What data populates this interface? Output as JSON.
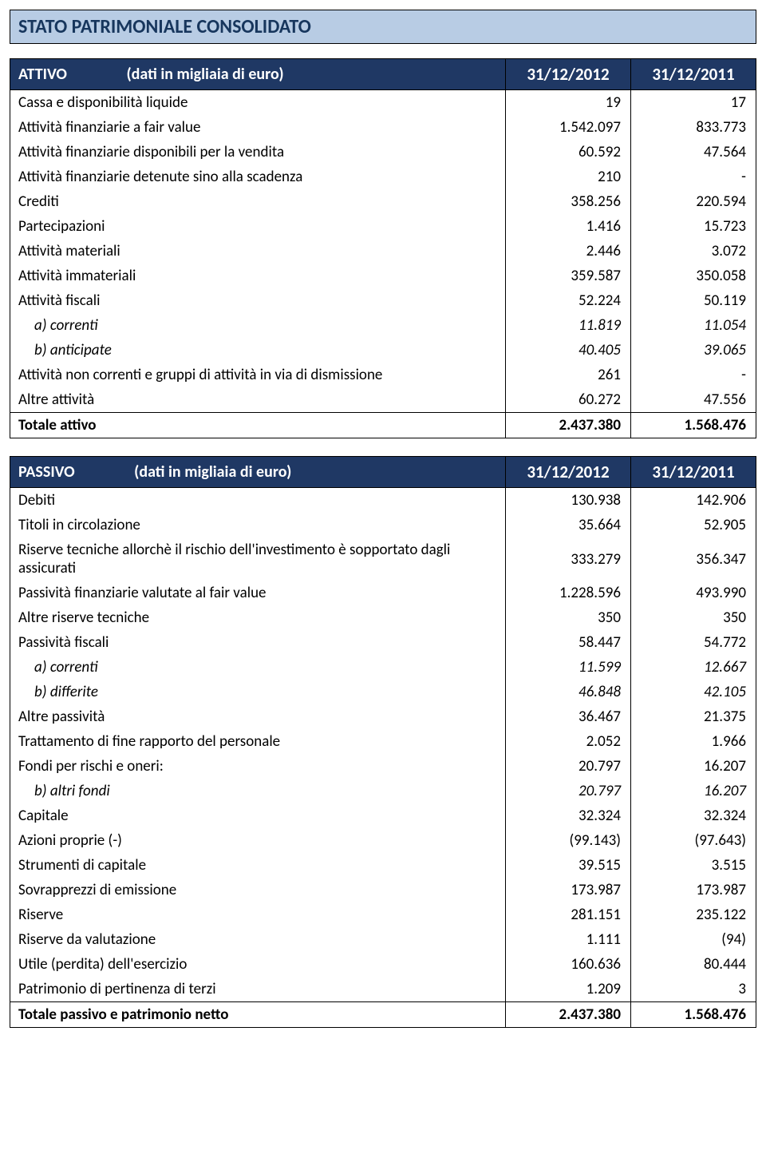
{
  "title": "STATO PATRIMONIALE CONSOLIDATO",
  "columns": [
    "31/12/2012",
    "31/12/2011"
  ],
  "attivo": {
    "header_label": "ATTIVO",
    "header_sub": "(dati in migliaia di euro)",
    "rows": [
      {
        "label": "Cassa e disponibilità liquide",
        "v1": "19",
        "v2": "17",
        "indent": false
      },
      {
        "label": "Attività finanziarie a fair value",
        "v1": "1.542.097",
        "v2": "833.773",
        "indent": false
      },
      {
        "label": "Attività finanziarie disponibili per la vendita",
        "v1": "60.592",
        "v2": "47.564",
        "indent": false
      },
      {
        "label": "Attività finanziarie detenute sino alla scadenza",
        "v1": "210",
        "v2": "-",
        "indent": false
      },
      {
        "label": "Crediti",
        "v1": "358.256",
        "v2": "220.594",
        "indent": false
      },
      {
        "label": "Partecipazioni",
        "v1": "1.416",
        "v2": "15.723",
        "indent": false
      },
      {
        "label": "Attività materiali",
        "v1": "2.446",
        "v2": "3.072",
        "indent": false
      },
      {
        "label": "Attività immateriali",
        "v1": "359.587",
        "v2": "350.058",
        "indent": false
      },
      {
        "label": "Attività fiscali",
        "v1": "52.224",
        "v2": "50.119",
        "indent": false
      },
      {
        "label": "a) correnti",
        "v1": "11.819",
        "v2": "11.054",
        "indent": true
      },
      {
        "label": "b) anticipate",
        "v1": "40.405",
        "v2": "39.065",
        "indent": true
      },
      {
        "label": "Attività non correnti e gruppi di attività in via di dismissione",
        "v1": "261",
        "v2": "-",
        "indent": false
      },
      {
        "label": "Altre attività",
        "v1": "60.272",
        "v2": "47.556",
        "indent": false
      }
    ],
    "total": {
      "label": "Totale attivo",
      "v1": "2.437.380",
      "v2": "1.568.476"
    }
  },
  "passivo": {
    "header_label": "PASSIVO",
    "header_sub": "(dati in migliaia di euro)",
    "rows": [
      {
        "label": "Debiti",
        "v1": "130.938",
        "v2": "142.906",
        "indent": false
      },
      {
        "label": "Titoli in circolazione",
        "v1": "35.664",
        "v2": "52.905",
        "indent": false
      },
      {
        "label": "Riserve tecniche allorchè il rischio dell'investimento è sopportato dagli assicurati",
        "v1": "333.279",
        "v2": "356.347",
        "indent": false
      },
      {
        "label": "Passività finanziarie valutate al fair value",
        "v1": "1.228.596",
        "v2": "493.990",
        "indent": false
      },
      {
        "label": "Altre riserve tecniche",
        "v1": "350",
        "v2": "350",
        "indent": false
      },
      {
        "label": "Passività fiscali",
        "v1": "58.447",
        "v2": "54.772",
        "indent": false
      },
      {
        "label": "a) correnti",
        "v1": "11.599",
        "v2": "12.667",
        "indent": true
      },
      {
        "label": "b) differite",
        "v1": "46.848",
        "v2": "42.105",
        "indent": true
      },
      {
        "label": "Altre passività",
        "v1": "36.467",
        "v2": "21.375",
        "indent": false
      },
      {
        "label": "Trattamento di fine rapporto del personale",
        "v1": "2.052",
        "v2": "1.966",
        "indent": false
      },
      {
        "label": "Fondi per rischi e oneri:",
        "v1": "20.797",
        "v2": "16.207",
        "indent": false
      },
      {
        "label": "b) altri fondi",
        "v1": "20.797",
        "v2": "16.207",
        "indent": true
      },
      {
        "label": "Capitale",
        "v1": "32.324",
        "v2": "32.324",
        "indent": false
      },
      {
        "label": "Azioni proprie (-)",
        "v1": "(99.143)",
        "v2": "(97.643)",
        "indent": false
      },
      {
        "label": "Strumenti di capitale",
        "v1": "39.515",
        "v2": "3.515",
        "indent": false
      },
      {
        "label": "Sovrapprezzi di emissione",
        "v1": "173.987",
        "v2": "173.987",
        "indent": false
      },
      {
        "label": "Riserve",
        "v1": "281.151",
        "v2": "235.122",
        "indent": false
      },
      {
        "label": "Riserve da valutazione",
        "v1": "1.111",
        "v2": "(94)",
        "indent": false
      },
      {
        "label": "Utile (perdita) dell'esercizio",
        "v1": "160.636",
        "v2": "80.444",
        "indent": false
      },
      {
        "label": "Patrimonio di pertinenza di terzi",
        "v1": "1.209",
        "v2": "3",
        "indent": false
      }
    ],
    "total": {
      "label": "Totale passivo e patrimonio netto",
      "v1": "2.437.380",
      "v2": "1.568.476"
    }
  }
}
